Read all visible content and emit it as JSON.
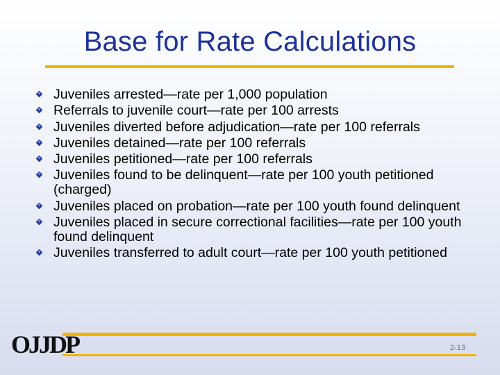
{
  "slide": {
    "title": "Base for Rate Calculations",
    "bullets": [
      "Juveniles arrested—rate per 1,000 population",
      "Referrals to juvenile court—rate per 100 arrests",
      "Juveniles diverted before adjudication—rate per 100 referrals",
      "Juveniles detained—rate per 100 referrals",
      "Juveniles petitioned—rate per 100 referrals",
      "Juveniles found to be delinquent—rate per 100 youth petitioned (charged)",
      "Juveniles placed on probation—rate per 100 youth found delinquent",
      "Juveniles placed in secure correctional facilities—rate per 100 youth found delinquent",
      "Juveniles transferred to adult court—rate per 100 youth petitioned"
    ]
  },
  "footer": {
    "logo_text": "OJJDP",
    "page_number": "2-13"
  },
  "colors": {
    "title": "#1d3299",
    "accent_rule": "#f0b400",
    "bullet": "#2b3fa0"
  },
  "icons": {
    "bullet": "diamond-bullet-icon",
    "logo": "ojjdp-logo"
  }
}
